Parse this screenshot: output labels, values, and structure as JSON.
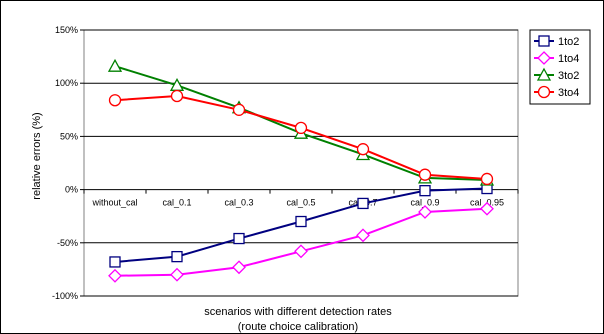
{
  "chart_data": {
    "type": "line",
    "categories": [
      "without_cal",
      "cal_0.1",
      "cal_0.3",
      "cal_0.5",
      "cal_0.7",
      "cal_0.9",
      "cal_0.95"
    ],
    "ylim": [
      -100,
      150
    ],
    "yticks": [
      -100,
      -50,
      0,
      50,
      100,
      150
    ],
    "ytick_labels": [
      "-100%",
      "-50%",
      "0%",
      "50%",
      "100%",
      "150%"
    ],
    "ylabel": "relative errors (%)",
    "xlabel": "scenarios with different detection rates",
    "xlabel_sub": "(route choice calibration)",
    "grid": true,
    "legend_position": "right",
    "series": [
      {
        "name": "1to2",
        "color": "#000080",
        "marker": "square",
        "values": [
          -68,
          -63,
          -46,
          -30,
          -13,
          -1,
          1
        ]
      },
      {
        "name": "1to4",
        "color": "#ff00ff",
        "marker": "diamond",
        "values": [
          -81,
          -80,
          -73,
          -58,
          -43,
          -21,
          -18
        ]
      },
      {
        "name": "3to2",
        "color": "#008000",
        "marker": "triangle",
        "values": [
          116,
          98,
          77,
          53,
          33,
          11,
          9
        ]
      },
      {
        "name": "3to4",
        "color": "#ff0000",
        "marker": "circle",
        "values": [
          84,
          88,
          75,
          58,
          38,
          14,
          10
        ]
      }
    ]
  }
}
